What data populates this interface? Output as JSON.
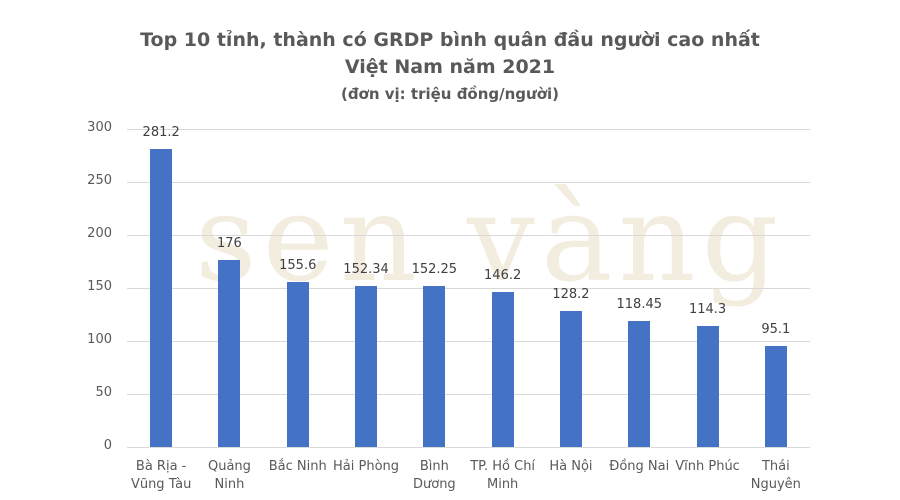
{
  "chart_data": {
    "type": "bar",
    "title": "Top 10 tỉnh, thành có GRDP bình quân đầu người cao nhất Việt Nam năm 2021",
    "subtitle": "(đơn vị: triệu đồng/người)",
    "title_line1": "Top 10 tỉnh, thành có GRDP bình quân đầu người cao nhất",
    "title_line2": "Việt Nam năm 2021",
    "xlabel": "",
    "ylabel": "",
    "ylim": [
      0,
      300
    ],
    "yticks": [
      "0",
      "50",
      "100",
      "150",
      "200",
      "250",
      "300"
    ],
    "grid": true,
    "legend": "none",
    "categories": [
      "Bà Rịa - Vũng Tàu",
      "Quảng Ninh",
      "Bắc Ninh",
      "Hải Phòng",
      "Bình Dương",
      "TP. Hồ Chí Minh",
      "Hà Nội",
      "Đồng Nai",
      "Vĩnh Phúc",
      "Thái Nguyên"
    ],
    "category_lines": [
      [
        "Bà Rịa -",
        "Vũng Tàu"
      ],
      [
        "Quảng",
        "Ninh"
      ],
      [
        "Bắc Ninh",
        ""
      ],
      [
        "Hải Phòng",
        ""
      ],
      [
        "Bình",
        "Dương"
      ],
      [
        "TP. Hồ Chí",
        "Minh"
      ],
      [
        "Hà Nội",
        ""
      ],
      [
        "Đồng Nai",
        ""
      ],
      [
        "Vĩnh Phúc",
        ""
      ],
      [
        "Thái",
        "Nguyên"
      ]
    ],
    "values": [
      281.2,
      176,
      155.6,
      152.34,
      152.25,
      146.2,
      128.2,
      118.45,
      114.3,
      95.1
    ],
    "value_labels": [
      "281.2",
      "176",
      "155.6",
      "152.34",
      "152.25",
      "146.2",
      "128.2",
      "118.45",
      "114.3",
      "95.1"
    ],
    "bar_color": "#4472c4"
  },
  "watermark": "sen vàng"
}
